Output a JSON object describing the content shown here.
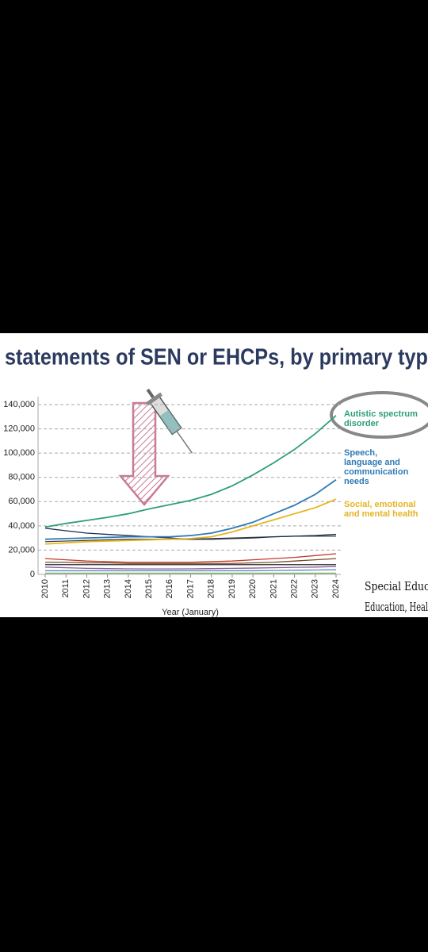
{
  "chart_data": {
    "type": "line",
    "title": "statements of SEN or EHCPs, by primary type",
    "xlabel": "Year (January)",
    "x": [
      2010,
      2011,
      2012,
      2013,
      2014,
      2015,
      2016,
      2017,
      2018,
      2019,
      2020,
      2021,
      2022,
      2023,
      2024
    ],
    "xlim": [
      2010,
      2024
    ],
    "xticks": [
      2010,
      2011,
      2012,
      2013,
      2014,
      2015,
      2016,
      2017,
      2018,
      2019,
      2020,
      2021,
      2022,
      2023,
      2024
    ],
    "ylim": [
      0,
      140000
    ],
    "yticks": [
      0,
      {
        "value": 20000,
        "label": "20,000"
      },
      {
        "value": 40000,
        "label": "40,000"
      },
      {
        "value": 60000,
        "label": "60,000"
      },
      {
        "value": 80000,
        "label": "80,000"
      },
      {
        "value": 100000,
        "label": "100,000"
      },
      {
        "value": 120000,
        "label": "120,000"
      },
      {
        "value": 140000,
        "label": "140,000"
      }
    ],
    "grid": true,
    "series": [
      {
        "label_lines": [
          "Autistic spectrum",
          "disorder"
        ],
        "color": "#2e9e7a",
        "values": [
          39000,
          42000,
          44500,
          47000,
          50000,
          54000,
          57500,
          61000,
          66000,
          73000,
          82000,
          92000,
          103000,
          116000,
          131000
        ]
      },
      {
        "label_lines": [
          "Speech,",
          "language and",
          "communication",
          "needs"
        ],
        "color": "#2f7ab5",
        "values": [
          29000,
          29500,
          30000,
          30500,
          31000,
          31000,
          31000,
          32000,
          34000,
          38000,
          43000,
          50000,
          57000,
          66000,
          78000
        ]
      },
      {
        "label_lines": [
          "Social, emotional",
          "and mental health"
        ],
        "color": "#e6b422",
        "values": [
          25000,
          26000,
          27000,
          27500,
          28000,
          28500,
          29000,
          29500,
          31000,
          35000,
          40000,
          45000,
          50000,
          55000,
          62000
        ]
      },
      {
        "color": "#1a2a4a",
        "values": [
          38000,
          36000,
          34000,
          33000,
          32000,
          31000,
          30000,
          29000,
          29000,
          29500,
          30000,
          31000,
          31500,
          32000,
          33000
        ]
      },
      {
        "color": "#444444",
        "values": [
          27000,
          27500,
          28000,
          28500,
          29000,
          29000,
          29000,
          29000,
          29500,
          30000,
          30500,
          31000,
          31500,
          31500,
          31500
        ]
      },
      {
        "color": "#c0392b",
        "values": [
          13000,
          12000,
          11000,
          10500,
          10000,
          10000,
          10000,
          10000,
          10500,
          11000,
          12000,
          13000,
          14000,
          15500,
          17000
        ]
      },
      {
        "color": "#7a4a2a",
        "values": [
          10000,
          10000,
          9500,
          9500,
          9000,
          9000,
          9000,
          9000,
          9000,
          9000,
          9500,
          10000,
          11000,
          12000,
          13000
        ]
      },
      {
        "color": "#2a2a2a",
        "values": [
          8000,
          8000,
          8000,
          8000,
          8000,
          8000,
          8000,
          8000,
          8000,
          8000,
          8000,
          8000,
          8000,
          8000,
          8000
        ]
      },
      {
        "color": "#8a5a9a",
        "values": [
          6000,
          5500,
          5000,
          4800,
          4600,
          4500,
          4500,
          4600,
          4800,
          5000,
          5200,
          5500,
          5800,
          6000,
          6500
        ]
      },
      {
        "color": "#5a8ac0",
        "values": [
          3000,
          3000,
          3000,
          3000,
          3000,
          3000,
          3000,
          3000,
          3000,
          3000,
          3000,
          3200,
          3400,
          3600,
          3800
        ]
      },
      {
        "color": "#6aa84f",
        "values": [
          1000,
          1000,
          1000,
          1000,
          1000,
          1000,
          1000,
          1000,
          1000,
          1000,
          1000,
          1000,
          1000,
          1000,
          1000
        ]
      }
    ],
    "annotations": [
      "Special Educ",
      "Education, Healt"
    ]
  }
}
